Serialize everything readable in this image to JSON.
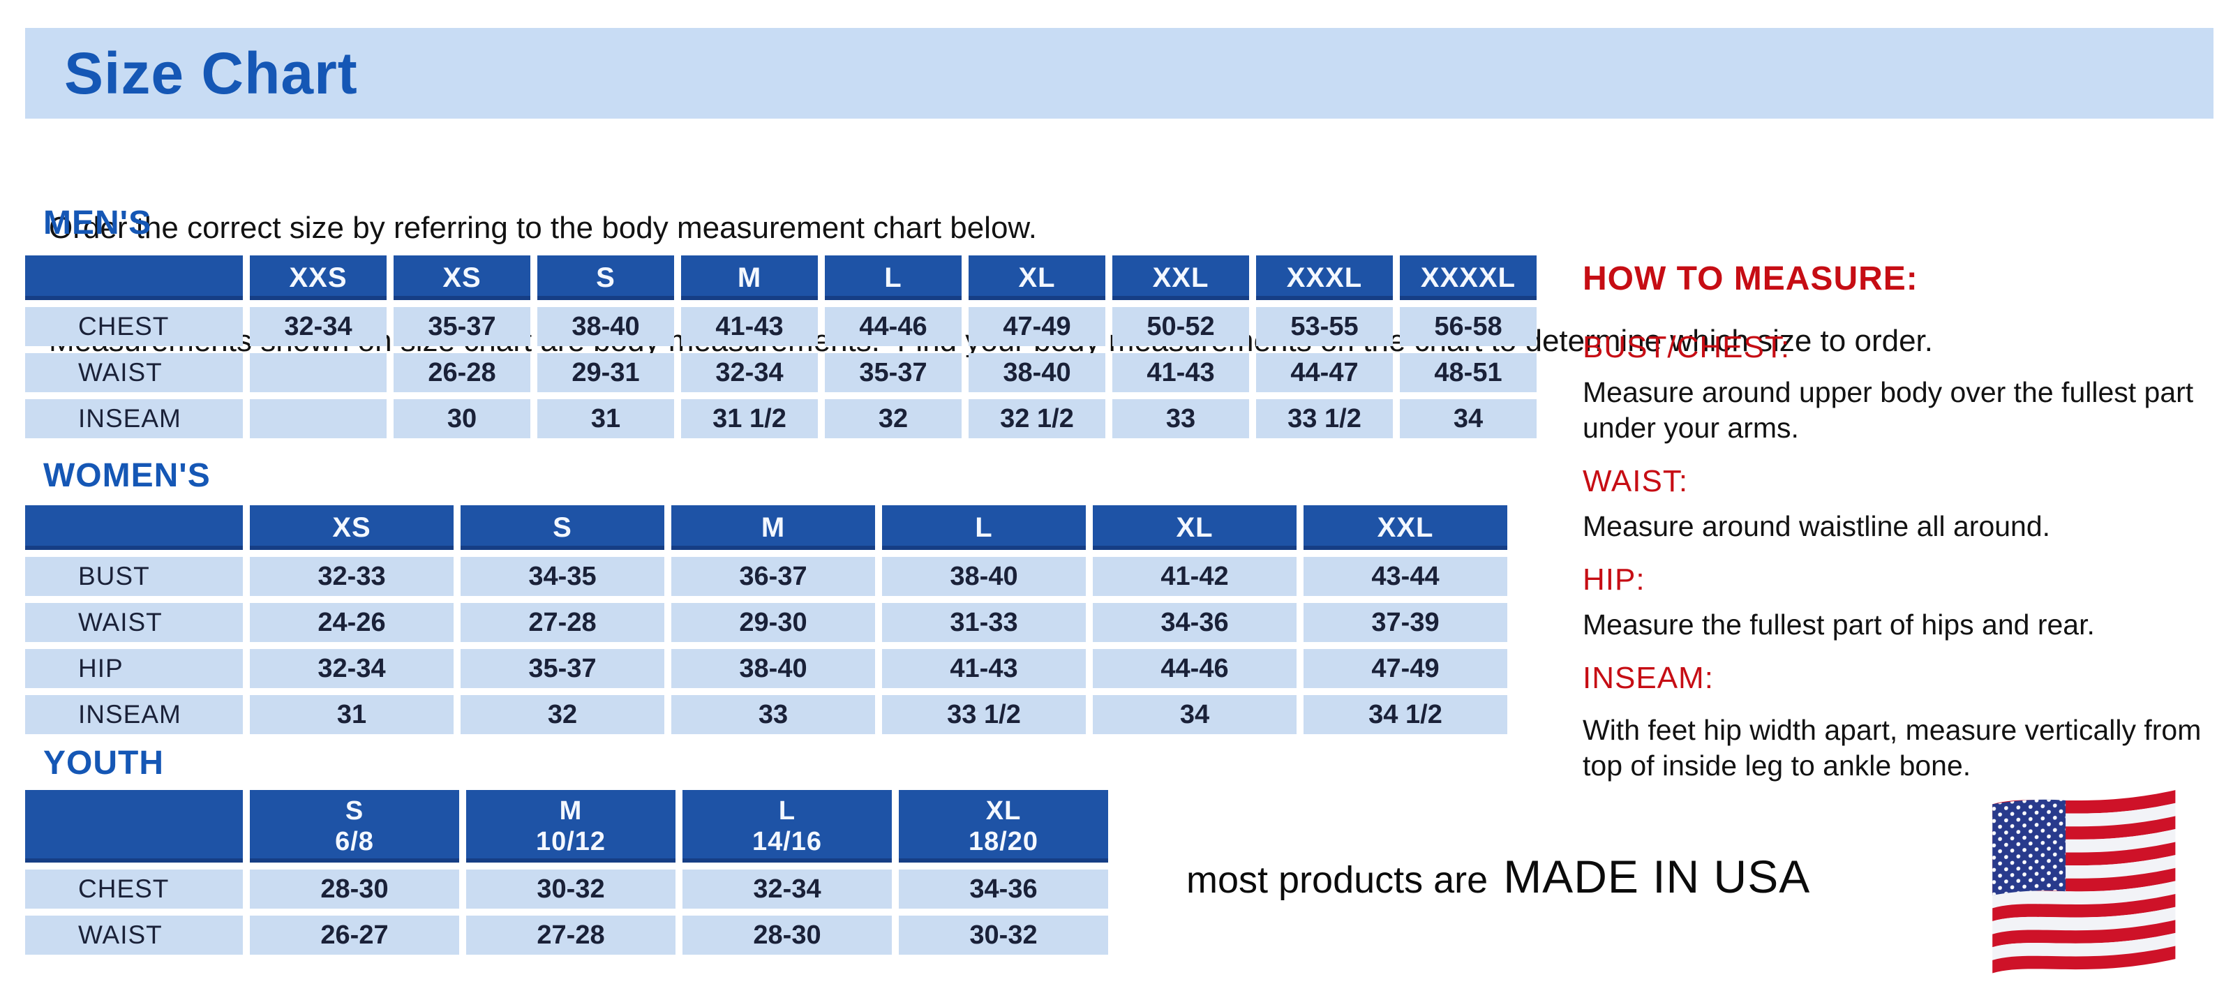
{
  "title": "Size Chart",
  "intro": {
    "line1": "Order the correct size by referring to the body measurement chart below.",
    "line2": "Measurements shown on size chart are body measurements.  Find your body measurements on the chart to determine which size to order."
  },
  "colors": {
    "banner_blue": "#c8dcf4",
    "title_blue": "#1557b5",
    "header_blue": "#1e53a6",
    "cell_blue": "#cadcf2",
    "data_navy": "#1a2138",
    "accent_red": "#c60d14",
    "text_black": "#121212",
    "flag_red": "#ce1228",
    "flag_blue": "#283a8c"
  },
  "tables": {
    "mens": {
      "heading": "MEN'S",
      "columns": [
        "XXS",
        "XS",
        "S",
        "M",
        "L",
        "XL",
        "XXL",
        "XXXL",
        "XXXXL"
      ],
      "rows": [
        {
          "label": "CHEST",
          "values": [
            "32-34",
            "35-37",
            "38-40",
            "41-43",
            "44-46",
            "47-49",
            "50-52",
            "53-55",
            "56-58"
          ]
        },
        {
          "label": "WAIST",
          "values": [
            "",
            "26-28",
            "29-31",
            "32-34",
            "35-37",
            "38-40",
            "41-43",
            "44-47",
            "48-51"
          ]
        },
        {
          "label": "INSEAM",
          "values": [
            "",
            "30",
            "31",
            "31 1/2",
            "32",
            "32 1/2",
            "33",
            "33 1/2",
            "34"
          ]
        }
      ]
    },
    "womens": {
      "heading": "WOMEN'S",
      "columns": [
        "XS",
        "S",
        "M",
        "L",
        "XL",
        "XXL"
      ],
      "rows": [
        {
          "label": "BUST",
          "values": [
            "32-33",
            "34-35",
            "36-37",
            "38-40",
            "41-42",
            "43-44"
          ]
        },
        {
          "label": "WAIST",
          "values": [
            "24-26",
            "27-28",
            "29-30",
            "31-33",
            "34-36",
            "37-39"
          ]
        },
        {
          "label": "HIP",
          "values": [
            "32-34",
            "35-37",
            "38-40",
            "41-43",
            "44-46",
            "47-49"
          ]
        },
        {
          "label": "INSEAM",
          "values": [
            "31",
            "32",
            "33",
            "33 1/2",
            "34",
            "34 1/2"
          ]
        }
      ]
    },
    "youth": {
      "heading": "YOUTH",
      "columns": [
        "S\n6/8",
        "M\n10/12",
        "L\n14/16",
        "XL\n18/20"
      ],
      "rows": [
        {
          "label": "CHEST",
          "values": [
            "28-30",
            "30-32",
            "32-34",
            "34-36"
          ]
        },
        {
          "label": "WAIST",
          "values": [
            "26-27",
            "27-28",
            "28-30",
            "30-32"
          ]
        }
      ]
    }
  },
  "how_to_measure": {
    "heading": "HOW TO MEASURE:",
    "items": [
      {
        "term": "BUST/CHEST:",
        "desc": "Measure around upper body over the fullest part under your arms."
      },
      {
        "term": "WAIST:",
        "desc": "Measure around waistline all around."
      },
      {
        "term": "HIP:",
        "desc": "Measure the fullest part of hips and rear."
      },
      {
        "term": "INSEAM:",
        "desc": "With feet hip width apart, measure vertically from top of inside leg to ankle bone."
      }
    ]
  },
  "footer": {
    "prefix": "most products are",
    "made_in": "MADE IN USA",
    "icon": "us-flag-icon"
  }
}
